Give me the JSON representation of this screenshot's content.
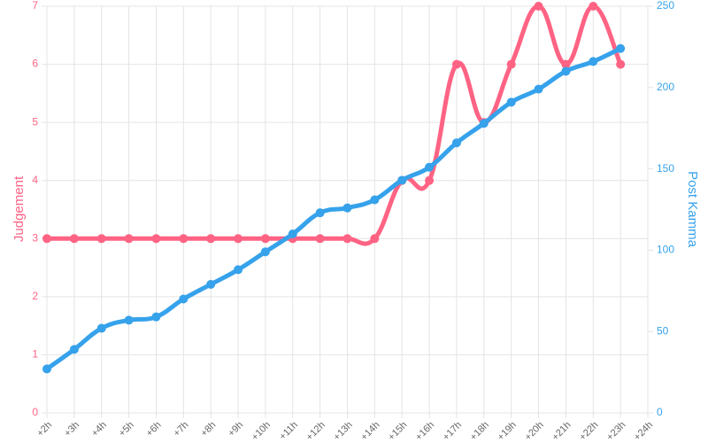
{
  "chart_data": {
    "type": "line",
    "categories": [
      "+2h",
      "+3h",
      "+4h",
      "+5h",
      "+6h",
      "+7h",
      "+8h",
      "+9h",
      "+10h",
      "+11h",
      "+12h",
      "+13h",
      "+14h",
      "+15h",
      "+16h",
      "+17h",
      "+18h",
      "+19h",
      "+20h",
      "+21h",
      "+22h",
      "+23h",
      "+24h"
    ],
    "series": [
      {
        "name": "Judgement",
        "color": "#ff6384",
        "axis": "y",
        "values": [
          3,
          3,
          3,
          3,
          3,
          3,
          3,
          3,
          3,
          3,
          3,
          3,
          3,
          4,
          4,
          6,
          5,
          6,
          7,
          6,
          7,
          6,
          null
        ]
      },
      {
        "name": "Post Kamma",
        "color": "#36a2eb",
        "axis": "y2",
        "values": [
          27,
          39,
          52,
          57,
          59,
          70,
          79,
          88,
          99,
          110,
          123,
          126,
          131,
          143,
          151,
          166,
          178,
          191,
          199,
          210,
          216,
          224,
          null
        ]
      }
    ],
    "ylabel": "Judgement",
    "y2label": "Post Kamma",
    "ylim": [
      0,
      7
    ],
    "yticks": [
      0,
      1,
      2,
      3,
      4,
      5,
      6,
      7
    ],
    "y2lim": [
      0,
      250
    ],
    "y2ticks": [
      0,
      50,
      100,
      150,
      200,
      250
    ],
    "grid": true
  }
}
